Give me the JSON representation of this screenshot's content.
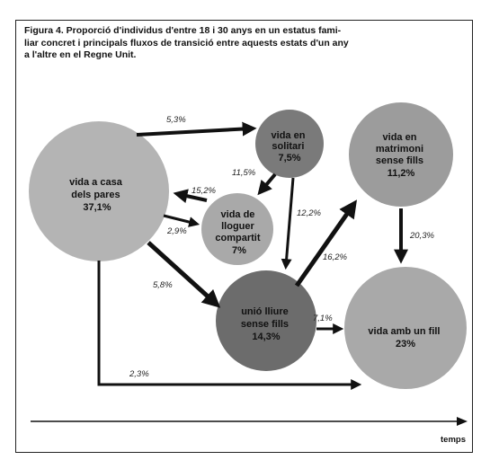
{
  "figure": {
    "caption_lines": [
      "Figura 4. Proporció d'individus d'entre 18 i 30 anys en un estatus fami-",
      "liar concret i principals fluxos de transició entre aquests estats d'un any",
      "a l'altre en el Regne Unit."
    ],
    "axis_label": "temps"
  },
  "nodes": [
    {
      "id": "home",
      "lines": [
        "vida a casa",
        "dels pares",
        "37,1%"
      ],
      "color": "#b4b4b4"
    },
    {
      "id": "solo",
      "lines": [
        "vida en",
        "solitari",
        "7,5%"
      ],
      "color": "#7a7a7a"
    },
    {
      "id": "shared",
      "lines": [
        "vida de",
        "lloguer",
        "compartit",
        "7%"
      ],
      "color": "#a9a9a9"
    },
    {
      "id": "cohab",
      "lines": [
        "unió lliure",
        "sense fills",
        "14,3%"
      ],
      "color": "#6c6c6c"
    },
    {
      "id": "married",
      "lines": [
        "vida en",
        "matrimoni",
        "sense fills",
        "11,2%"
      ],
      "color": "#9c9c9c"
    },
    {
      "id": "child",
      "lines": [
        "vida amb un fill",
        "23%"
      ],
      "color": "#a9a9a9"
    }
  ],
  "flows": [
    {
      "id": "home-solo",
      "label": "5,3%"
    },
    {
      "id": "solo-shared",
      "label": "11,5%"
    },
    {
      "id": "shared-home",
      "label": "15,2%"
    },
    {
      "id": "home-shared",
      "label": "2,9%"
    },
    {
      "id": "solo-cohab",
      "label": "12,2%"
    },
    {
      "id": "home-cohab",
      "label": "5,8%"
    },
    {
      "id": "cohab-married",
      "label": "16,2%"
    },
    {
      "id": "married-child",
      "label": "20,3%"
    },
    {
      "id": "cohab-child",
      "label": "7,1%"
    },
    {
      "id": "home-child",
      "label": "2,3%"
    }
  ]
}
